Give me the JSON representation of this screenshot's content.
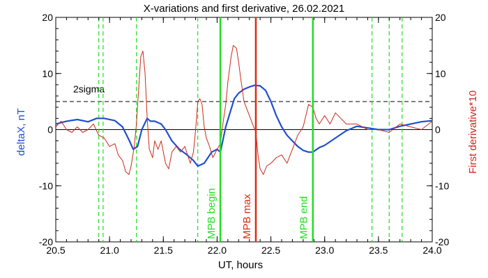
{
  "chart_data": {
    "type": "line",
    "title": "X-variations and first derivative, 26.02.2021",
    "xlabel": "UT, hours",
    "ylabel_left": "deltaX, nT",
    "ylabel_right": "First derivative*10",
    "xlim": [
      20.5,
      24.0
    ],
    "ylim_left": [
      -20,
      20
    ],
    "ylim_right": [
      -20,
      20
    ],
    "x_ticks": [
      "20.5",
      "21.0",
      "21.5",
      "22.0",
      "22.5",
      "23.0",
      "23.5",
      "24.0"
    ],
    "y_ticks": [
      "-20",
      "-10",
      "0",
      "10",
      "20"
    ],
    "colors": {
      "deltaX": "#1f4fd0",
      "derivative": "#cc2a1a",
      "mpb_lines": "#22dd22",
      "max_line": "#dd2a11",
      "axis": "#000000"
    },
    "threshold": {
      "label": "2sigma",
      "y": 5
    },
    "zero_line": 0,
    "dashed_green_x": [
      20.9,
      20.94,
      21.25,
      21.82,
      23.44,
      23.6,
      23.72
    ],
    "markers": [
      {
        "label": "MPB begin",
        "x": 22.03,
        "color": "#22dd22"
      },
      {
        "label": "MPB max",
        "x": 22.36,
        "color": "#dd2a11"
      },
      {
        "label": "MPB end",
        "x": 22.89,
        "color": "#22dd22"
      }
    ],
    "series": [
      {
        "name": "deltaX",
        "axis": "left",
        "x": [
          20.5,
          20.6,
          20.7,
          20.8,
          20.88,
          20.95,
          21.05,
          21.12,
          21.18,
          21.22,
          21.26,
          21.3,
          21.35,
          21.38,
          21.42,
          21.48,
          21.52,
          21.58,
          21.65,
          21.72,
          21.78,
          21.82,
          21.88,
          21.95,
          22.0,
          22.03,
          22.08,
          22.12,
          22.16,
          22.2,
          22.25,
          22.3,
          22.35,
          22.4,
          22.45,
          22.5,
          22.55,
          22.6,
          22.65,
          22.7,
          22.75,
          22.8,
          22.85,
          22.89,
          22.95,
          23.0,
          23.1,
          23.2,
          23.3,
          23.4,
          23.5,
          23.6,
          23.7,
          23.8,
          23.9,
          24.0
        ],
        "y": [
          1.0,
          1.5,
          1.8,
          1.4,
          2.0,
          2.0,
          1.6,
          0.5,
          -1.8,
          -3.5,
          -3.0,
          0.0,
          2.0,
          1.5,
          1.5,
          1.0,
          0.0,
          -2.0,
          -3.5,
          -4.5,
          -5.5,
          -6.5,
          -6.0,
          -4.0,
          -3.5,
          -4.0,
          0.5,
          3.0,
          5.5,
          6.5,
          7.2,
          7.6,
          7.9,
          7.8,
          7.0,
          5.0,
          2.5,
          0.5,
          -1.0,
          -2.0,
          -3.0,
          -3.7,
          -4.0,
          -4.0,
          -3.2,
          -2.8,
          -1.5,
          -0.2,
          0.6,
          0.3,
          0.0,
          0.0,
          0.6,
          1.0,
          1.4,
          1.6
        ]
      },
      {
        "name": "First derivative*10",
        "axis": "right",
        "x": [
          20.5,
          20.55,
          20.6,
          20.65,
          20.7,
          20.75,
          20.8,
          20.85,
          20.9,
          20.95,
          21.0,
          21.05,
          21.08,
          21.12,
          21.15,
          21.18,
          21.2,
          21.23,
          21.25,
          21.27,
          21.29,
          21.31,
          21.33,
          21.35,
          21.37,
          21.4,
          21.42,
          21.45,
          21.48,
          21.52,
          21.55,
          21.58,
          21.62,
          21.66,
          21.7,
          21.75,
          21.78,
          21.8,
          21.82,
          21.84,
          21.86,
          21.88,
          21.9,
          21.93,
          21.96,
          22.0,
          22.03,
          22.05,
          22.08,
          22.1,
          22.13,
          22.15,
          22.18,
          22.2,
          22.22,
          22.25,
          22.28,
          22.3,
          22.33,
          22.36,
          22.38,
          22.4,
          22.43,
          22.46,
          22.5,
          22.55,
          22.6,
          22.65,
          22.7,
          22.75,
          22.8,
          22.85,
          22.89,
          22.92,
          22.95,
          23.0,
          23.05,
          23.1,
          23.15,
          23.2,
          23.3,
          23.4,
          23.5,
          23.6,
          23.7,
          23.8,
          23.9,
          24.0
        ],
        "y": [
          0.5,
          1.5,
          0.0,
          -0.5,
          0.5,
          -0.5,
          0.0,
          1.0,
          -1.0,
          -1.5,
          -3.0,
          -2.5,
          -4.5,
          -5.5,
          -7.5,
          -8.0,
          -6.5,
          -3.0,
          1.0,
          7.0,
          13.0,
          14.0,
          10.0,
          2.0,
          -3.5,
          -5.0,
          -2.0,
          -3.5,
          -2.0,
          -6.0,
          -7.0,
          -4.0,
          -3.0,
          -4.0,
          -3.0,
          -6.0,
          -4.0,
          0.0,
          5.0,
          5.5,
          4.5,
          0.5,
          -1.5,
          -3.0,
          -5.0,
          -3.5,
          -2.5,
          0.5,
          4.5,
          8.5,
          13.0,
          15.0,
          14.5,
          12.0,
          9.0,
          5.0,
          3.5,
          2.5,
          1.0,
          -0.5,
          -4.5,
          -7.0,
          -8.0,
          -6.5,
          -6.0,
          -5.0,
          -4.5,
          -6.0,
          -3.5,
          -1.0,
          0.5,
          4.5,
          4.0,
          2.0,
          1.0,
          2.5,
          1.0,
          3.0,
          2.0,
          1.0,
          1.0,
          0.0,
          0.0,
          -0.5,
          1.0,
          0.5,
          0.0,
          1.5
        ]
      }
    ],
    "y2_ticks": [
      "-20",
      "-10",
      "0",
      "10",
      "20"
    ]
  }
}
